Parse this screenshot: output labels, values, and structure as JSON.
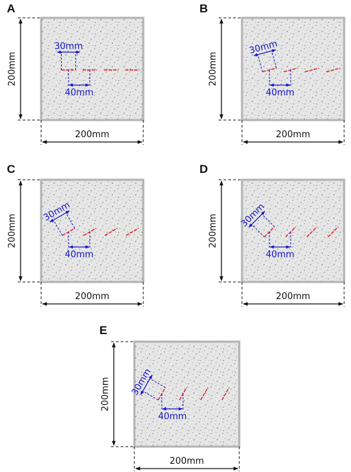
{
  "colors": {
    "specimen_fill": "#e6e6e6",
    "specimen_border": "#b3b3b3",
    "crack": "#e01818",
    "dimension_blue": "#1515c8",
    "dimension_black": "#111111"
  },
  "panels": [
    {
      "letter": "A",
      "height_label": "200mm",
      "width_label": "200mm",
      "spacing_label": "30mm",
      "length_label": "40mm",
      "crack_angle_deg": 0
    },
    {
      "letter": "B",
      "height_label": "200mm",
      "width_label": "200mm",
      "spacing_label": "30mm",
      "length_label": "40mm",
      "crack_angle_deg": 15
    },
    {
      "letter": "C",
      "height_label": "200mm",
      "width_label": "200mm",
      "spacing_label": "30mm",
      "length_label": "40mm",
      "crack_angle_deg": 30
    },
    {
      "letter": "D",
      "height_label": "200mm",
      "width_label": "200mm",
      "spacing_label": "30mm",
      "length_label": "40mm",
      "crack_angle_deg": 45
    },
    {
      "letter": "E",
      "height_label": "200mm",
      "width_label": "200mm",
      "spacing_label": "30mm",
      "length_label": "40mm",
      "crack_angle_deg": 60
    }
  ]
}
